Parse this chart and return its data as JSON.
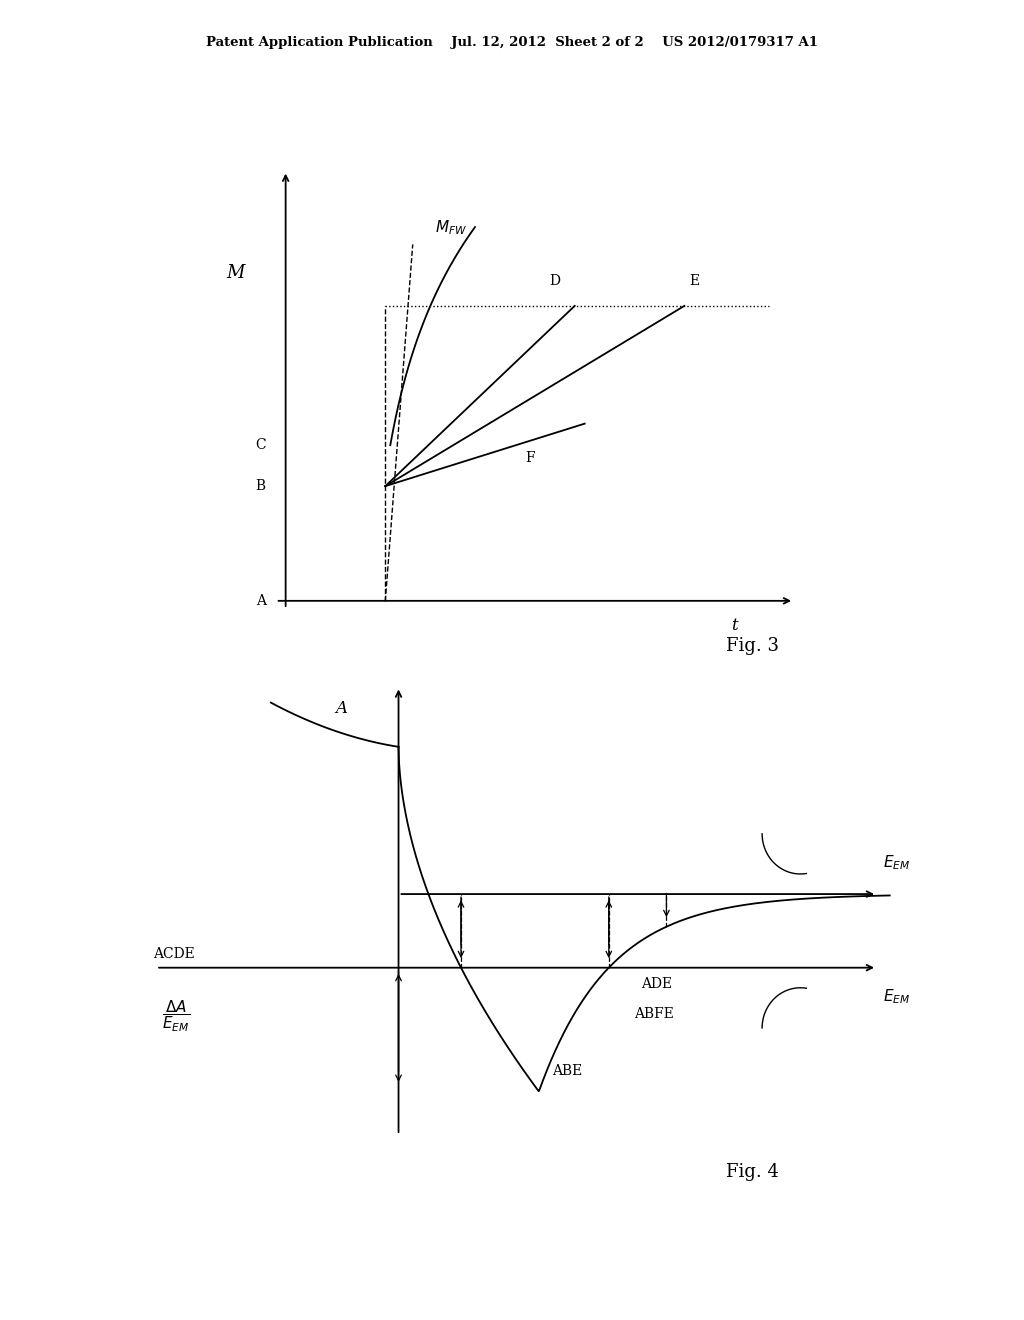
{
  "bg_color": "#ffffff",
  "header": "Patent Application Publication    Jul. 12, 2012  Sheet 2 of 2    US 2012/0179317 A1",
  "fig3_caption": "Fig. 3",
  "fig4_caption": "Fig. 4"
}
